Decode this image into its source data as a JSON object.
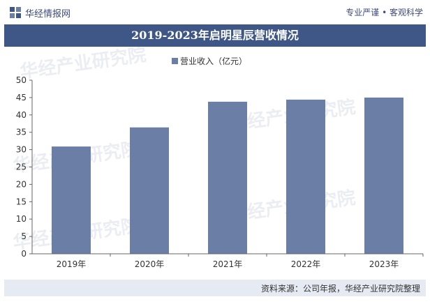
{
  "header": {
    "logo_text": "华经情报网",
    "slogan": "专业严谨 • 客观科学"
  },
  "chart_data": {
    "type": "bar",
    "title": "2019-2023年启明星辰营收情况",
    "categories": [
      "2019年",
      "2020年",
      "2021年",
      "2022年",
      "2023年"
    ],
    "series": [
      {
        "name": "营业收入（亿元）",
        "values": [
          30.9,
          36.4,
          43.8,
          44.4,
          45.0
        ],
        "color": "#6b7fa6"
      }
    ],
    "ylim": [
      0,
      50
    ],
    "yticks": [
      0,
      5,
      10,
      15,
      20,
      25,
      30,
      35,
      40,
      45,
      50
    ],
    "grid": false,
    "legend_position": "top"
  },
  "footer": {
    "source": "资料来源：公司年报，华经产业研究院整理"
  },
  "watermark": {
    "text": "华经产业研究院"
  }
}
